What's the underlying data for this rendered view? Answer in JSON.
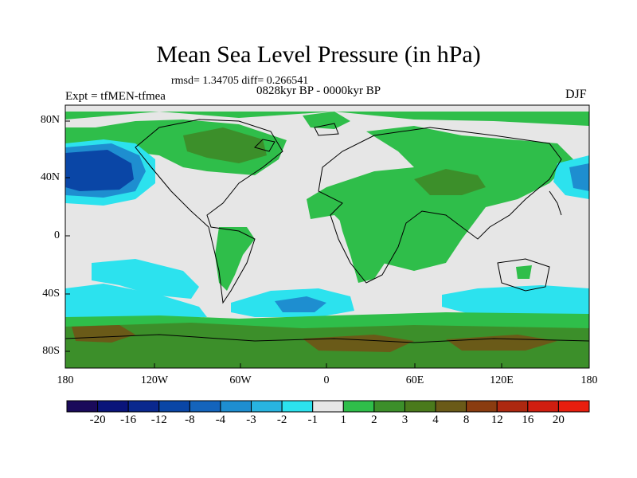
{
  "title": "Mean Sea Level Pressure (in hPa)",
  "stats": "rmsd= 1.34705 diff= 0.266541",
  "period": "0828kyr BP - 0000kyr BP",
  "experiment": "Expt = tfMEN-tfmea",
  "season": "DJF",
  "lat_labels": [
    "80N",
    "40N",
    "0",
    "40S",
    "80S"
  ],
  "lon_labels": [
    "180",
    "120W",
    "60W",
    "0",
    "60E",
    "120E",
    "180"
  ],
  "colorbar": {
    "labels": [
      "-20",
      "-16",
      "-12",
      "-8",
      "-4",
      "-3",
      "-2",
      "-1",
      "1",
      "2",
      "3",
      "4",
      "8",
      "12",
      "16",
      "20"
    ],
    "colors": [
      "#1a0a5a",
      "#0a147a",
      "#0a288e",
      "#0a46a6",
      "#1464bc",
      "#1e8ed0",
      "#28b4e0",
      "#2ce2ee",
      "#e6e6e6",
      "#2fbe4a",
      "#3c8f2a",
      "#4a7a1c",
      "#6a5a18",
      "#8a3c10",
      "#ad2810",
      "#d01e10",
      "#e81e0e"
    ]
  },
  "colors": {
    "land_outline": "#000000",
    "background_field": "#e6e6e6"
  }
}
